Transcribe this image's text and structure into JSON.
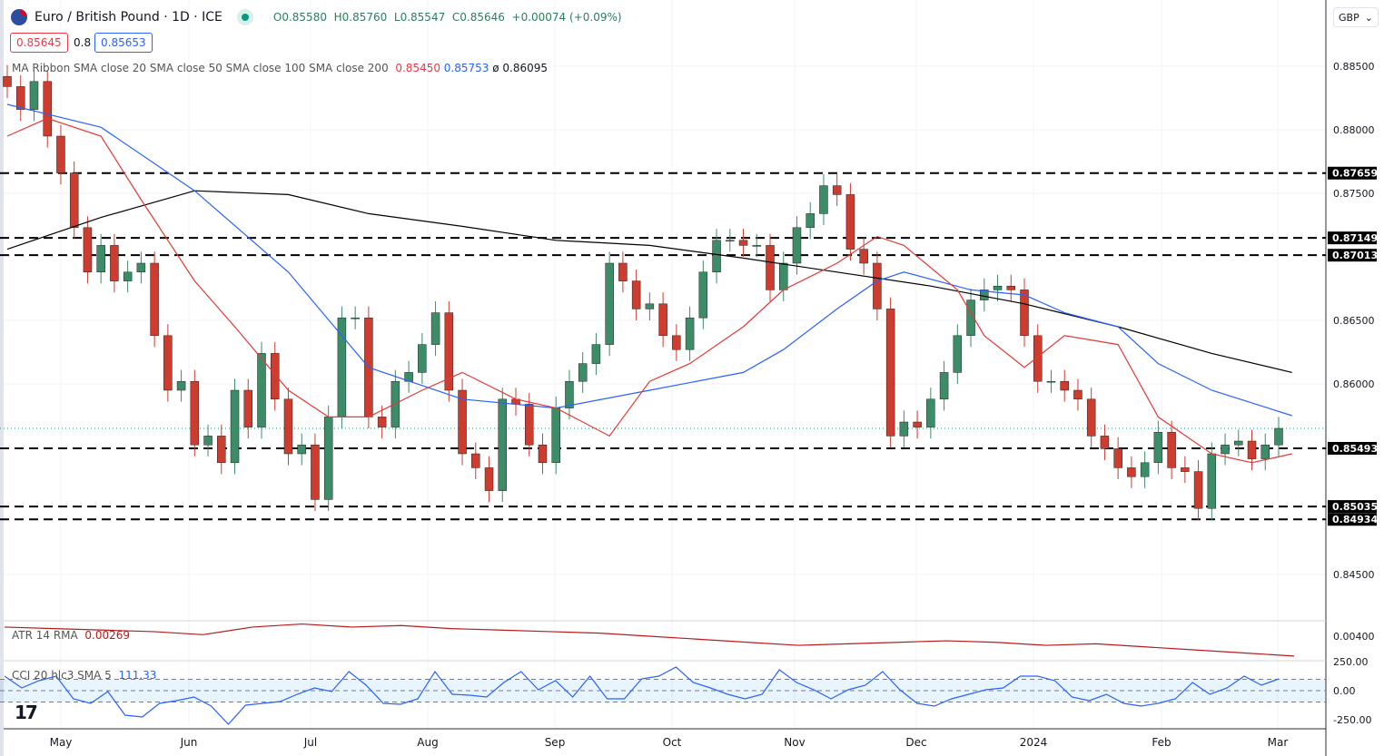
{
  "header": {
    "symbol": "Euro / British Pound · 1D · ICE",
    "open": "O0.85580",
    "high": "H0.85760",
    "low": "L0.85547",
    "close": "C0.85646",
    "change": "+0.00074 (+0.09%)",
    "bid": "0.85645",
    "spread": "0.8",
    "ask": "0.85653"
  },
  "indicators": {
    "ma_label": "MA Ribbon SMA close 20 SMA close 50 SMA close 100 SMA close 200",
    "ma20_value": "0.85450",
    "ma50_value": "0.85753",
    "ma200_value": "0.86095",
    "ma_sep": "ø",
    "atr_label": "ATR 14 RMA",
    "atr_value": "0.00269",
    "cci_label": "CCI 20 hlc3 SMA 5",
    "cci_value": "111.33"
  },
  "currency_selector": "GBP",
  "colors": {
    "up": "#3d8c68",
    "down": "#cc3c2f",
    "sma20": "#e53935",
    "sma50": "#2962ff",
    "sma200": "#000000",
    "atr": "#b71c1c",
    "cci": "#2962ff"
  },
  "chart_data": {
    "type": "candlestick",
    "x_ticks": [
      "May",
      "Jun",
      "Jul",
      "Aug",
      "Sep",
      "Oct",
      "Nov",
      "Dec",
      "2024",
      "Feb",
      "Mar"
    ],
    "y_ticks": [
      "0.88500",
      "0.88000",
      "0.87500",
      "0.86500",
      "0.86000",
      "0.84500"
    ],
    "ylim": [
      0.8435,
      0.8876
    ],
    "grid": true,
    "horizontal_levels": [
      "0.87659",
      "0.87149",
      "0.87013",
      "0.85493",
      "0.85035",
      "0.84934"
    ],
    "close": [
      0.8834,
      0.8816,
      0.8838,
      0.8795,
      0.8766,
      0.8723,
      0.8688,
      0.8709,
      0.8681,
      0.8688,
      0.8695,
      0.8638,
      0.8595,
      0.8602,
      0.8552,
      0.8559,
      0.8538,
      0.8595,
      0.8566,
      0.8624,
      0.8588,
      0.8545,
      0.8552,
      0.8509,
      0.8574,
      0.8652,
      0.8652,
      0.8574,
      0.8566,
      0.8602,
      0.8609,
      0.8631,
      0.8656,
      0.8595,
      0.8545,
      0.8534,
      0.8516,
      0.8588,
      0.8584,
      0.8552,
      0.8538,
      0.8581,
      0.8602,
      0.8616,
      0.8631,
      0.8695,
      0.8681,
      0.8659,
      0.8663,
      0.8638,
      0.8627,
      0.8652,
      0.8688,
      0.8713,
      0.8713,
      0.8709,
      0.8709,
      0.8674,
      0.8695,
      0.8723,
      0.8734,
      0.8756,
      0.8749,
      0.8706,
      0.8695,
      0.8659,
      0.8559,
      0.857,
      0.8566,
      0.8588,
      0.8609,
      0.8638,
      0.8666,
      0.8674,
      0.8677,
      0.8674,
      0.8638,
      0.8602,
      0.8602,
      0.8595,
      0.8588,
      0.8559,
      0.8549,
      0.8534,
      0.8527,
      0.8538,
      0.8562,
      0.8534,
      0.8531,
      0.8502,
      0.8545,
      0.8552,
      0.8555,
      0.8541,
      0.8552,
      0.8565
    ],
    "sma20": [
      [
        0,
        0.8795
      ],
      [
        3,
        0.8809
      ],
      [
        7,
        0.8795
      ],
      [
        10,
        0.8745
      ],
      [
        14,
        0.8681
      ],
      [
        17,
        0.8645
      ],
      [
        21,
        0.8595
      ],
      [
        24,
        0.8574
      ],
      [
        27,
        0.8574
      ],
      [
        31,
        0.8595
      ],
      [
        34,
        0.8609
      ],
      [
        38,
        0.8588
      ],
      [
        41,
        0.8581
      ],
      [
        45,
        0.8559
      ],
      [
        48,
        0.8602
      ],
      [
        51,
        0.8616
      ],
      [
        55,
        0.8645
      ],
      [
        58,
        0.8674
      ],
      [
        62,
        0.8695
      ],
      [
        65,
        0.8716
      ],
      [
        67,
        0.8709
      ],
      [
        71,
        0.8674
      ],
      [
        73,
        0.8638
      ],
      [
        76,
        0.8613
      ],
      [
        79,
        0.8638
      ],
      [
        83,
        0.8631
      ],
      [
        86,
        0.8574
      ],
      [
        90,
        0.8545
      ],
      [
        93,
        0.8538
      ],
      [
        96,
        0.8545
      ]
    ],
    "sma50": [
      [
        0,
        0.882
      ],
      [
        7,
        0.8802
      ],
      [
        14,
        0.8752
      ],
      [
        21,
        0.8688
      ],
      [
        27,
        0.8613
      ],
      [
        34,
        0.8588
      ],
      [
        41,
        0.8581
      ],
      [
        48,
        0.8595
      ],
      [
        55,
        0.8609
      ],
      [
        58,
        0.8627
      ],
      [
        62,
        0.8659
      ],
      [
        65,
        0.8681
      ],
      [
        67,
        0.8688
      ],
      [
        72,
        0.8674
      ],
      [
        76,
        0.867
      ],
      [
        79,
        0.8656
      ],
      [
        83,
        0.8645
      ],
      [
        86,
        0.8616
      ],
      [
        90,
        0.8595
      ],
      [
        96,
        0.8575
      ]
    ],
    "sma200": [
      [
        0,
        0.8706
      ],
      [
        7,
        0.8731
      ],
      [
        14,
        0.8752
      ],
      [
        21,
        0.8749
      ],
      [
        27,
        0.8734
      ],
      [
        34,
        0.8724
      ],
      [
        41,
        0.8713
      ],
      [
        48,
        0.8709
      ],
      [
        55,
        0.8699
      ],
      [
        62,
        0.8688
      ],
      [
        69,
        0.8677
      ],
      [
        76,
        0.8663
      ],
      [
        83,
        0.8645
      ],
      [
        90,
        0.8624
      ],
      [
        96,
        0.8609
      ]
    ],
    "atr": {
      "tick": "0.00400",
      "values": [
        0.0046,
        0.0045,
        0.0044,
        0.0043,
        0.0041,
        0.0046,
        0.0048,
        0.0046,
        0.0047,
        0.0045,
        0.0044,
        0.0043,
        0.0042,
        0.004,
        0.0038,
        0.0036,
        0.0034,
        0.0035,
        0.0036,
        0.0037,
        0.0036,
        0.0034,
        0.0035,
        0.0033,
        0.0031,
        0.0029,
        0.0027
      ]
    },
    "cci": {
      "ticks": [
        "250.00",
        "0.00",
        "-250.00"
      ],
      "bands": [
        100,
        -100
      ],
      "values": [
        128,
        24,
        88,
        128,
        -72,
        -112,
        -8,
        -216,
        -232,
        -112,
        -88,
        -56,
        -136,
        -296,
        -128,
        -112,
        -96,
        -32,
        24,
        -8,
        168,
        48,
        -112,
        -120,
        -72,
        168,
        -32,
        -40,
        -56,
        72,
        168,
        8,
        88,
        -56,
        128,
        -72,
        -72,
        104,
        128,
        208,
        72,
        24,
        -32,
        -72,
        -32,
        184,
        72,
        8,
        -72,
        8,
        48,
        168,
        8,
        -112,
        -136,
        -72,
        -32,
        8,
        24,
        128,
        128,
        88,
        -56,
        -88,
        -32,
        -112,
        -136,
        -112,
        -72,
        72,
        -32,
        24,
        128,
        48,
        104
      ]
    }
  }
}
